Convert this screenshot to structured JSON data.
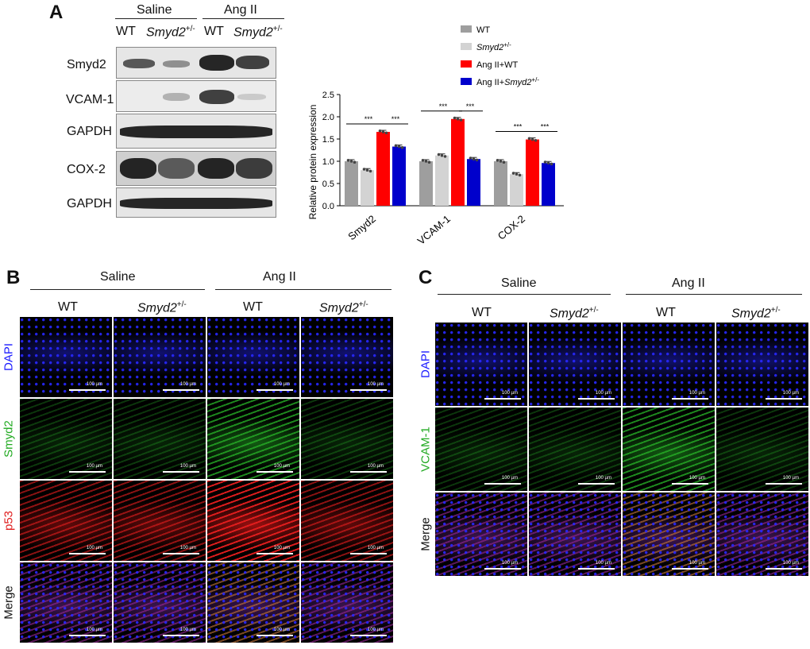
{
  "panels": {
    "a": "A",
    "b": "B",
    "c": "C"
  },
  "panel_a": {
    "groups": [
      "Saline",
      "Ang II"
    ],
    "lanes": [
      "WT",
      "Smyd2",
      "WT",
      "Smyd2"
    ],
    "superscript": "+/-",
    "blots": [
      "Smyd2",
      "VCAM-1",
      "GAPDH",
      "COX-2",
      "GAPDH"
    ]
  },
  "chart_data": {
    "type": "bar",
    "categories": [
      "Smyd2",
      "VCAM-1",
      "COX-2"
    ],
    "ylabel": "Relative protein expression",
    "ylim": [
      0,
      2.5
    ],
    "yticks": [
      "0.0",
      "0.5",
      "1.0",
      "1.5",
      "2.0",
      "2.5"
    ],
    "series": [
      {
        "name": "WT",
        "values": [
          1.0,
          1.0,
          1.0
        ],
        "color": "#9e9e9e"
      },
      {
        "name": "Smyd2+/-",
        "values": [
          0.8,
          1.13,
          0.71
        ],
        "color": "#d3d3d3"
      },
      {
        "name": "Ang II+WT",
        "values": [
          1.66,
          1.95,
          1.49
        ],
        "color": "#ff0000"
      },
      {
        "name": "Ang II+Smyd2+/-",
        "values": [
          1.33,
          1.05,
          0.96
        ],
        "color": "#0000cc"
      }
    ],
    "significance": "***",
    "legend": "top-right"
  },
  "panel_b": {
    "groups": [
      "Saline",
      "Ang II"
    ],
    "cols": [
      "WT",
      "Smyd2",
      "WT",
      "Smyd2"
    ],
    "superscript": "+/-",
    "rows": [
      {
        "label": "DAPI",
        "color": "#1a1aff"
      },
      {
        "label": "Smyd2",
        "color": "#22aa22"
      },
      {
        "label": "p53",
        "color": "#e02020"
      },
      {
        "label": "Merge",
        "color": "#111111"
      }
    ],
    "scale": "100 µm"
  },
  "panel_c": {
    "groups": [
      "Saline",
      "Ang II"
    ],
    "cols": [
      "WT",
      "Smyd2",
      "WT",
      "Smyd2"
    ],
    "superscript": "+/-",
    "rows": [
      {
        "label": "DAPI",
        "color": "#1a1aff"
      },
      {
        "label": "VCAM-1",
        "color": "#22aa22"
      },
      {
        "label": "Merge",
        "color": "#111111"
      }
    ],
    "scale": "100 µm"
  }
}
